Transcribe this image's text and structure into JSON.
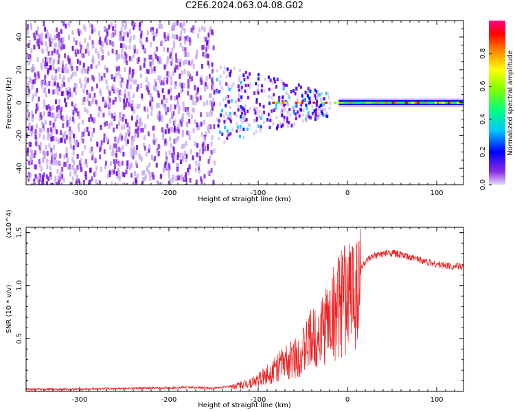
{
  "title": "C2E6.2024.063.04.08.G02",
  "chart_data": [
    {
      "type": "heatmap",
      "xlabel": "Height of straight line (km)",
      "ylabel": "Frequency (Hz)",
      "xlim": [
        -360,
        130
      ],
      "ylim": [
        -50,
        50
      ],
      "x_ticks": [
        -300,
        -200,
        -100,
        0,
        100
      ],
      "y_ticks": [
        -40,
        -20,
        0,
        20,
        40
      ],
      "colorbar": {
        "label": "Normalized spectral amplitude",
        "range": [
          0,
          1
        ],
        "ticks": [
          "0.0",
          "0.2",
          "0.4",
          "0.6",
          "0.8"
        ],
        "colormap": [
          "#e8d8f8",
          "#8a2be2",
          "#0000ff",
          "#00c8ff",
          "#00ff80",
          "#80ff00",
          "#ffff00",
          "#ff8000",
          "#ff0000",
          "#ff0080"
        ]
      },
      "grid": false
    },
    {
      "type": "line",
      "xlabel": "Height of straight line (km)",
      "ylabel": "SNR (10 * v/v)",
      "y_scale_label": "(x10^4)",
      "xlim": [
        -360,
        130
      ],
      "ylim": [
        0,
        1.55
      ],
      "x_ticks": [
        -300,
        -200,
        -100,
        0,
        100
      ],
      "y_ticks": [
        "0.5",
        "1.0",
        "1.5"
      ],
      "series_color": "#ee2222",
      "grid": false,
      "x": [
        -360,
        -300,
        -250,
        -210,
        -180,
        -150,
        -130,
        -115,
        -100,
        -90,
        -80,
        -70,
        -60,
        -50,
        -40,
        -30,
        -20,
        -10,
        0,
        10,
        20,
        30,
        40,
        50,
        60,
        70,
        80,
        90,
        100,
        110,
        120,
        130
      ],
      "y": [
        0.02,
        0.02,
        0.03,
        0.03,
        0.04,
        0.03,
        0.05,
        0.08,
        0.12,
        0.18,
        0.25,
        0.3,
        0.35,
        0.42,
        0.55,
        0.62,
        0.78,
        0.9,
        1.0,
        1.12,
        1.22,
        1.28,
        1.3,
        1.31,
        1.29,
        1.26,
        1.25,
        1.22,
        1.2,
        1.19,
        1.18,
        1.18
      ]
    }
  ]
}
